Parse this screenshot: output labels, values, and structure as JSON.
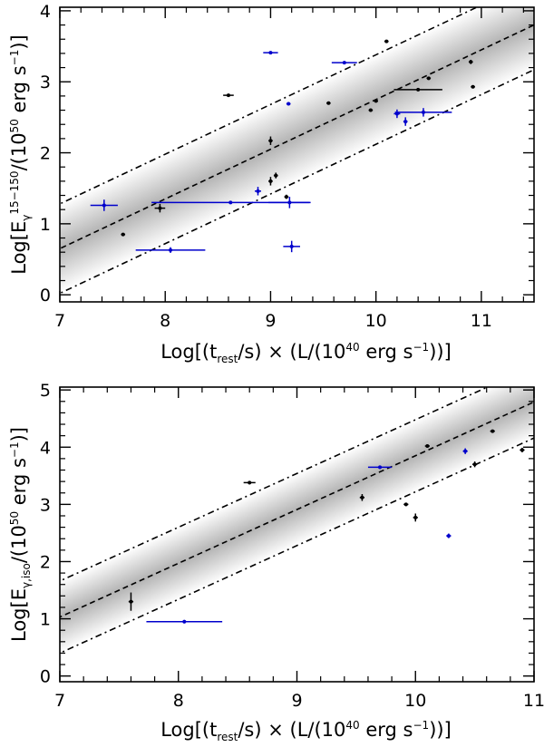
{
  "figure": {
    "top_panel": {
      "xlabel": {
        "pre": "Log[(t",
        "sub": "rest",
        "mid1": "/s) × (L/(10",
        "sup": "40",
        "mid2": " erg s",
        "sup2": "−1",
        "post": "))]"
      },
      "ylabel": {
        "pre": "Log[E",
        "sub": "γ",
        "sup": "15−150",
        "mid": "/(10",
        "sup2": "50",
        "mid2": " erg s",
        "sup3": "−1",
        "post": ")]"
      }
    },
    "bottom_panel": {
      "xlabel": {
        "pre": "Log[(t",
        "sub": "rest",
        "mid1": "/s) × (L/(10",
        "sup": "40",
        "mid2": " erg s",
        "sup2": "−1",
        "post": "))]"
      },
      "ylabel": {
        "pre": "Log[E",
        "sub": "γ,iso",
        "mid": "/(10",
        "sup2": "50",
        "mid2": " erg s",
        "sup3": "−1",
        "post": ")]"
      }
    }
  },
  "colors": {
    "black_points": "#000000",
    "blue_points": "#0000cc",
    "band_edge": "#ffffff",
    "band_center": "#b4b4b4"
  },
  "chart_data": [
    {
      "type": "scatter",
      "panel": "top",
      "xlim": [
        7,
        11.5
      ],
      "ylim": [
        -0.1,
        4.05
      ],
      "xticks": [
        7,
        8,
        9,
        10,
        11
      ],
      "yticks": [
        0,
        1,
        2,
        3,
        4
      ],
      "fit": {
        "slope": 0.7,
        "intercept": -4.25,
        "scatter": 0.63
      },
      "series": [
        {
          "name": "black",
          "points": [
            {
              "x": 7.6,
              "y": 0.85,
              "xerr": 0.02,
              "yerr": 0.02
            },
            {
              "x": 7.95,
              "y": 1.22,
              "xerr": 0.05,
              "yerr": 0.06
            },
            {
              "x": 8.6,
              "y": 2.81,
              "xerr": 0.05,
              "yerr": 0.01
            },
            {
              "x": 9.0,
              "y": 2.17,
              "xerr": 0.02,
              "yerr": 0.06
            },
            {
              "x": 9.0,
              "y": 1.6,
              "xerr": 0.02,
              "yerr": 0.06
            },
            {
              "x": 9.05,
              "y": 1.68,
              "xerr": 0.02,
              "yerr": 0.04
            },
            {
              "x": 9.15,
              "y": 1.38,
              "xerr": 0.02,
              "yerr": 0.03
            },
            {
              "x": 9.55,
              "y": 2.7,
              "xerr": 0.02,
              "yerr": 0.02
            },
            {
              "x": 9.95,
              "y": 2.6,
              "xerr": 0.02,
              "yerr": 0.02
            },
            {
              "x": 10.0,
              "y": 2.73,
              "xerr": 0.02,
              "yerr": 0.02
            },
            {
              "x": 10.1,
              "y": 3.57,
              "xerr": 0.02,
              "yerr": 0.02
            },
            {
              "x": 10.4,
              "y": 2.89,
              "xerr": 0.23,
              "yerr": 0.01
            },
            {
              "x": 10.5,
              "y": 3.05,
              "xerr": 0.02,
              "yerr": 0.02
            },
            {
              "x": 10.9,
              "y": 3.28,
              "xerr": 0.02,
              "yerr": 0.03
            },
            {
              "x": 10.92,
              "y": 2.93,
              "xerr": 0.02,
              "yerr": 0.02
            }
          ]
        },
        {
          "name": "blue",
          "points": [
            {
              "x": 7.42,
              "y": 1.26,
              "xerr": 0.13,
              "yerr": 0.08
            },
            {
              "x": 8.05,
              "y": 0.63,
              "xerr": 0.33,
              "yerr": 0.04
            },
            {
              "x": 8.62,
              "y": 1.3,
              "xerr": 0.75,
              "yerr": 0.01
            },
            {
              "x": 8.88,
              "y": 1.46,
              "xerr": 0.03,
              "yerr": 0.06
            },
            {
              "x": 9.0,
              "y": 3.41,
              "xerr": 0.07,
              "yerr": 0.01
            },
            {
              "x": 9.17,
              "y": 2.69,
              "xerr": 0.02,
              "yerr": 0.02
            },
            {
              "x": 9.18,
              "y": 1.3,
              "xerr": 0.2,
              "yerr": 0.08
            },
            {
              "x": 9.2,
              "y": 0.68,
              "xerr": 0.08,
              "yerr": 0.08
            },
            {
              "x": 9.7,
              "y": 3.27,
              "xerr": 0.12,
              "yerr": 0.01
            },
            {
              "x": 10.2,
              "y": 2.55,
              "xerr": 0.03,
              "yerr": 0.06
            },
            {
              "x": 10.28,
              "y": 2.44,
              "xerr": 0.02,
              "yerr": 0.06
            },
            {
              "x": 10.45,
              "y": 2.57,
              "xerr": 0.27,
              "yerr": 0.06
            }
          ]
        }
      ]
    },
    {
      "type": "scatter",
      "panel": "bottom",
      "xlim": [
        7,
        11
      ],
      "ylim": [
        -0.1,
        5.05
      ],
      "xticks": [
        7,
        8,
        9,
        10,
        11
      ],
      "yticks": [
        0,
        1,
        2,
        3,
        4,
        5
      ],
      "fit": {
        "slope": 0.94,
        "intercept": -5.55,
        "scatter": 0.63
      },
      "series": [
        {
          "name": "black",
          "points": [
            {
              "x": 7.6,
              "y": 1.3,
              "xerr": 0.02,
              "yerr": 0.16
            },
            {
              "x": 8.6,
              "y": 3.38,
              "xerr": 0.05,
              "yerr": 0.03
            },
            {
              "x": 9.55,
              "y": 3.12,
              "xerr": 0.02,
              "yerr": 0.06
            },
            {
              "x": 9.92,
              "y": 3.0,
              "xerr": 0.02,
              "yerr": 0.03
            },
            {
              "x": 10.0,
              "y": 2.77,
              "xerr": 0.02,
              "yerr": 0.07
            },
            {
              "x": 10.1,
              "y": 4.02,
              "xerr": 0.02,
              "yerr": 0.02
            },
            {
              "x": 10.5,
              "y": 3.7,
              "xerr": 0.02,
              "yerr": 0.05
            },
            {
              "x": 10.65,
              "y": 4.28,
              "xerr": 0.02,
              "yerr": 0.02
            },
            {
              "x": 10.9,
              "y": 3.95,
              "xerr": 0.02,
              "yerr": 0.04
            }
          ]
        },
        {
          "name": "blue",
          "points": [
            {
              "x": 8.05,
              "y": 0.95,
              "xerr": 0.32,
              "yerr": 0.03
            },
            {
              "x": 9.7,
              "y": 3.65,
              "xerr": 0.1,
              "yerr": 0.03
            },
            {
              "x": 10.28,
              "y": 2.45,
              "xerr": 0.02,
              "yerr": 0.04
            },
            {
              "x": 10.42,
              "y": 3.93,
              "xerr": 0.02,
              "yerr": 0.05
            }
          ]
        }
      ]
    }
  ]
}
